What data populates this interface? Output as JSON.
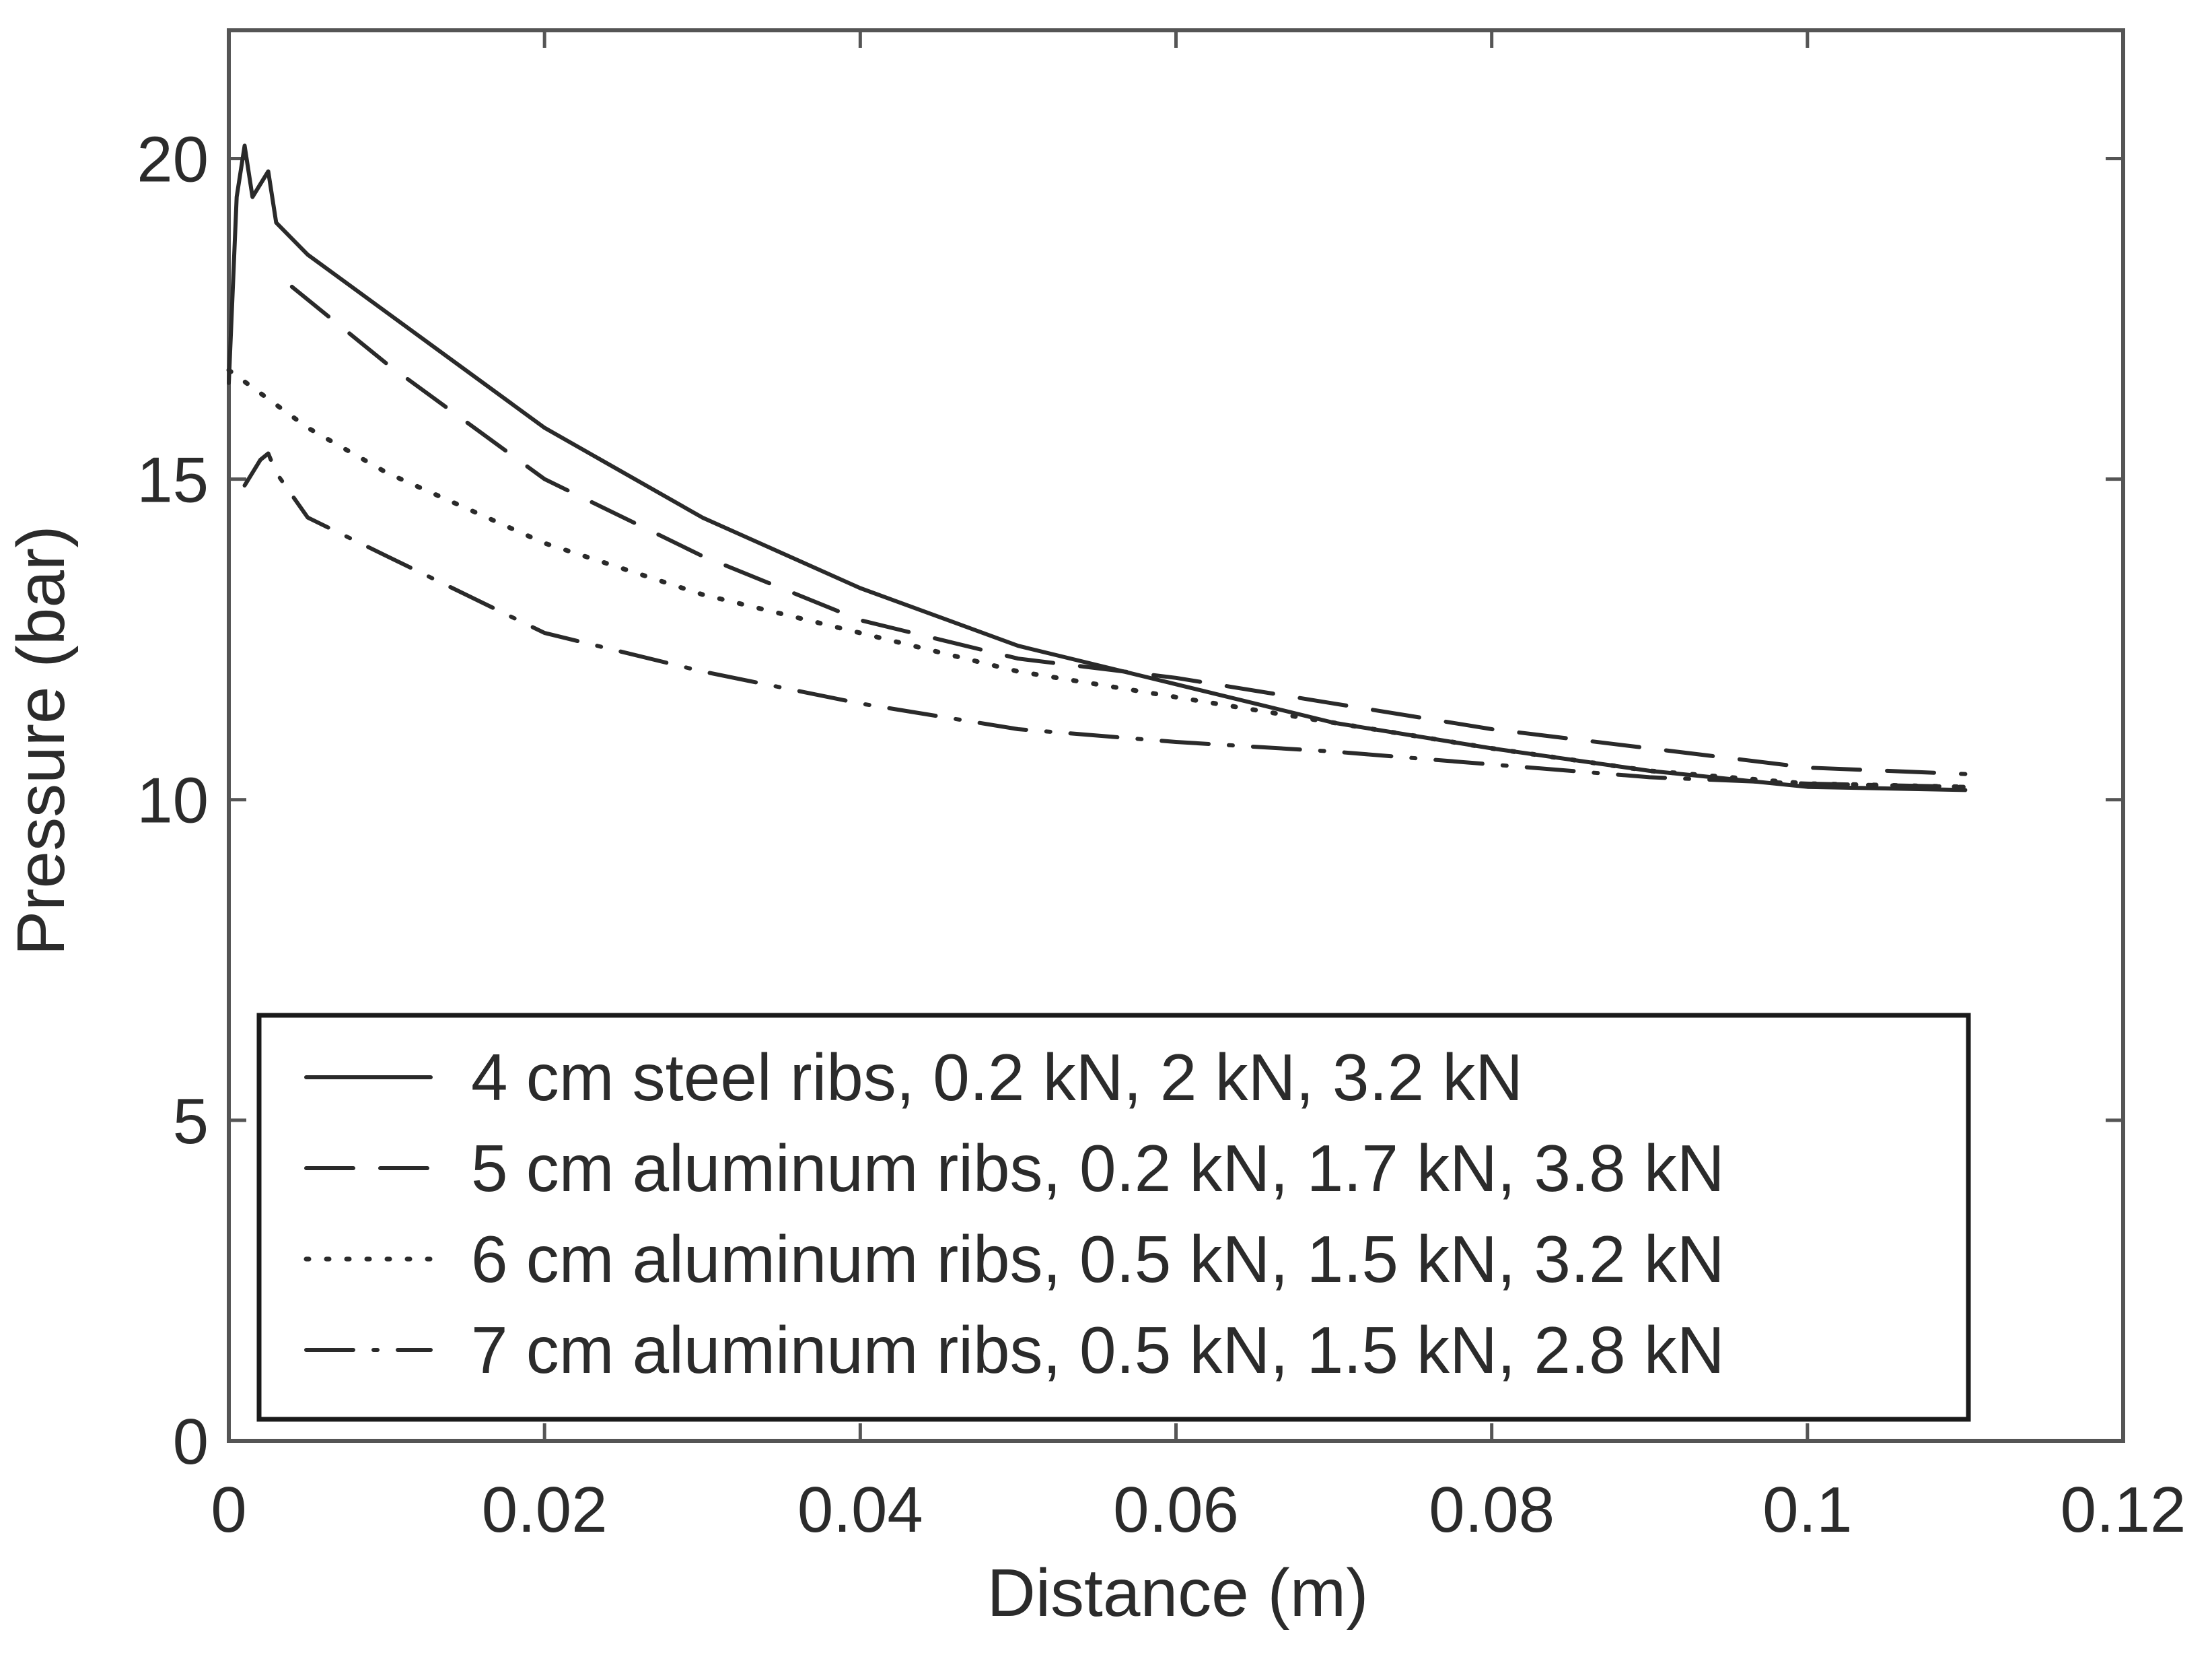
{
  "chart_data": {
    "type": "line",
    "title": "",
    "xlabel": "Distance (m)",
    "ylabel": "Pressure (bar)",
    "xlim": [
      0,
      0.12
    ],
    "ylim": [
      0,
      22
    ],
    "xticks": [
      0,
      0.02,
      0.04,
      0.06,
      0.08,
      0.1,
      0.12
    ],
    "xtick_labels": [
      "0",
      "0.02",
      "0.04",
      "0.06",
      "0.08",
      "0.1",
      "0.12"
    ],
    "yticks": [
      0,
      5,
      10,
      15,
      20
    ],
    "ytick_labels": [
      "0",
      "5",
      "10",
      "15",
      "20"
    ],
    "grid": false,
    "legend_position": "bottom",
    "series": [
      {
        "name": "4 cm steel ribs, 0.2 kN, 2 kN, 3.2 kN",
        "style": "solid",
        "x": [
          0,
          0.0005,
          0.001,
          0.0015,
          0.002,
          0.0025,
          0.003,
          0.005,
          0.01,
          0.02,
          0.03,
          0.04,
          0.05,
          0.06,
          0.07,
          0.08,
          0.09,
          0.1,
          0.11
        ],
        "y": [
          16.5,
          19.4,
          20.2,
          19.4,
          19.6,
          19.8,
          19.0,
          18.5,
          17.6,
          15.8,
          14.4,
          13.3,
          12.4,
          11.8,
          11.2,
          10.8,
          10.45,
          10.2,
          10.15
        ]
      },
      {
        "name": "5 cm aluminum ribs, 0.2 kN, 1.7 kN, 3.8 kN",
        "style": "dashed",
        "x": [
          0.004,
          0.01,
          0.02,
          0.03,
          0.04,
          0.05,
          0.06,
          0.07,
          0.08,
          0.09,
          0.1,
          0.11
        ],
        "y": [
          18.0,
          16.8,
          15.0,
          13.8,
          12.8,
          12.2,
          11.9,
          11.5,
          11.1,
          10.8,
          10.5,
          10.4
        ]
      },
      {
        "name": "6 cm aluminum ribs, 0.5 kN, 1.5 kN, 3.2 kN",
        "style": "dotted",
        "x": [
          0,
          0.005,
          0.01,
          0.02,
          0.03,
          0.04,
          0.05,
          0.06,
          0.07,
          0.08,
          0.09,
          0.1,
          0.11
        ],
        "y": [
          16.7,
          15.8,
          15.1,
          14.0,
          13.2,
          12.6,
          12.0,
          11.6,
          11.2,
          10.8,
          10.45,
          10.25,
          10.2
        ]
      },
      {
        "name": "7 cm aluminum ribs, 0.5 kN, 1.5 kN, 2.8 kN",
        "style": "dashdot",
        "x": [
          0.001,
          0.0015,
          0.002,
          0.0025,
          0.003,
          0.005,
          0.01,
          0.02,
          0.03,
          0.04,
          0.05,
          0.06,
          0.07,
          0.08,
          0.09,
          0.1,
          0.11
        ],
        "y": [
          14.9,
          15.1,
          15.3,
          15.4,
          15.1,
          14.4,
          13.8,
          12.6,
          12.0,
          11.5,
          11.1,
          10.9,
          10.75,
          10.55,
          10.35,
          10.25,
          10.2
        ]
      }
    ]
  }
}
